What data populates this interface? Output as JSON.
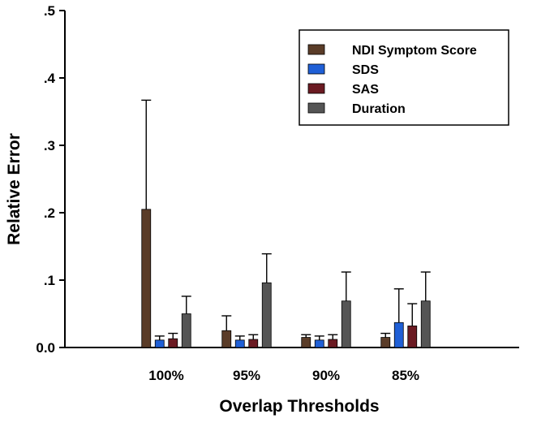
{
  "chart_data": {
    "type": "bar",
    "title": "",
    "xlabel": "Overlap Thresholds",
    "ylabel": "Relative Error",
    "ylim": [
      0,
      0.5
    ],
    "y_ticks": [
      {
        "value": 0.0,
        "label": "0.0"
      },
      {
        "value": 0.1,
        "label": ".1"
      },
      {
        "value": 0.2,
        "label": ".2"
      },
      {
        "value": 0.3,
        "label": ".3"
      },
      {
        "value": 0.4,
        "label": ".4"
      },
      {
        "value": 0.5,
        "label": ".5"
      }
    ],
    "categories": [
      "100%",
      "95%",
      "90%",
      "85%"
    ],
    "error_bars": "upper",
    "legend_position": "top-right",
    "series": [
      {
        "name": "NDI Symptom Score",
        "color": "#5a3c28",
        "values": [
          0.205,
          0.025,
          0.015,
          0.015
        ],
        "errors": [
          0.162,
          0.022,
          0.004,
          0.006
        ]
      },
      {
        "name": "SDS",
        "color": "#1f5fd6",
        "values": [
          0.011,
          0.011,
          0.011,
          0.037
        ],
        "errors": [
          0.006,
          0.006,
          0.006,
          0.05
        ]
      },
      {
        "name": "SAS",
        "color": "#6b1a22",
        "values": [
          0.013,
          0.012,
          0.012,
          0.032
        ],
        "errors": [
          0.008,
          0.007,
          0.007,
          0.033
        ]
      },
      {
        "name": "Duration",
        "color": "#555555",
        "values": [
          0.05,
          0.096,
          0.069,
          0.069
        ],
        "errors": [
          0.026,
          0.043,
          0.043,
          0.043
        ]
      }
    ]
  }
}
